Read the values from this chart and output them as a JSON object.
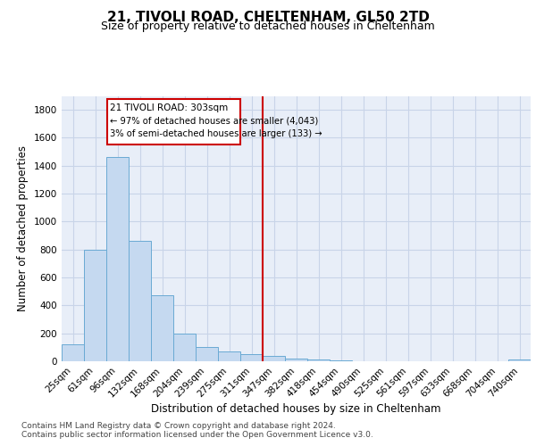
{
  "title": "21, TIVOLI ROAD, CHELTENHAM, GL50 2TD",
  "subtitle": "Size of property relative to detached houses in Cheltenham",
  "xlabel": "Distribution of detached houses by size in Cheltenham",
  "ylabel": "Number of detached properties",
  "footnote1": "Contains HM Land Registry data © Crown copyright and database right 2024.",
  "footnote2": "Contains public sector information licensed under the Open Government Licence v3.0.",
  "bar_labels": [
    "25sqm",
    "61sqm",
    "96sqm",
    "132sqm",
    "168sqm",
    "204sqm",
    "239sqm",
    "275sqm",
    "311sqm",
    "347sqm",
    "382sqm",
    "418sqm",
    "454sqm",
    "490sqm",
    "525sqm",
    "561sqm",
    "597sqm",
    "633sqm",
    "668sqm",
    "704sqm",
    "740sqm"
  ],
  "bar_values": [
    120,
    800,
    1460,
    860,
    475,
    200,
    105,
    70,
    50,
    38,
    20,
    15,
    5,
    3,
    2,
    2,
    0,
    0,
    0,
    0,
    10
  ],
  "bar_color": "#c5d9f0",
  "bar_edge_color": "#6aaad4",
  "vline_index": 8.5,
  "annotation_line1": "21 TIVOLI ROAD: 303sqm",
  "annotation_line2": "← 97% of detached houses are smaller (4,043)",
  "annotation_line3": "3% of semi-detached houses are larger (133) →",
  "annotation_box_color": "#cc0000",
  "vline_color": "#cc0000",
  "ylim": [
    0,
    1900
  ],
  "background_color": "#e8eef8",
  "grid_color": "#c8d4e8",
  "title_fontsize": 11,
  "subtitle_fontsize": 9,
  "axis_label_fontsize": 8.5,
  "tick_fontsize": 7.5,
  "footnote_fontsize": 6.5
}
